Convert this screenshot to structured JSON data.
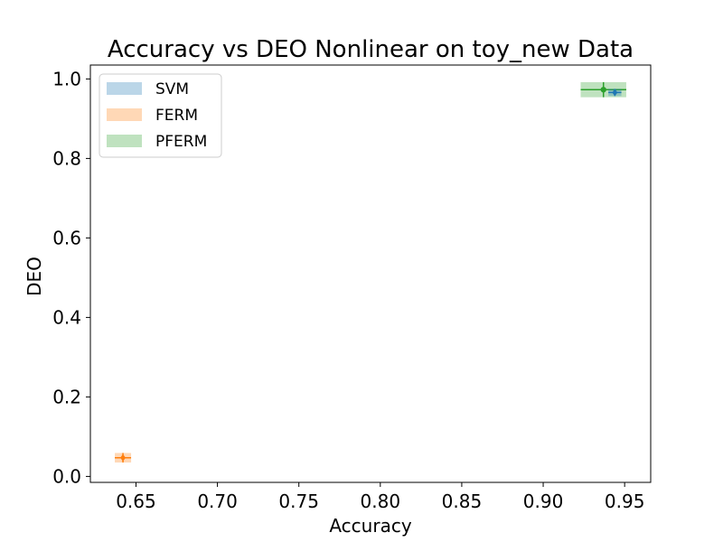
{
  "chart_data": {
    "type": "scatter",
    "title": "Accuracy vs DEO Nonlinear on toy_new Data",
    "xlabel": "Accuracy",
    "ylabel": "DEO",
    "xlim": [
      0.622,
      0.966
    ],
    "ylim": [
      -0.015,
      1.035
    ],
    "x_ticks": [
      "0.65",
      "0.70",
      "0.75",
      "0.80",
      "0.85",
      "0.90",
      "0.95"
    ],
    "x_tick_values": [
      0.65,
      0.7,
      0.75,
      0.8,
      0.85,
      0.9,
      0.95
    ],
    "y_ticks": [
      "0.0",
      "0.2",
      "0.4",
      "0.6",
      "0.8",
      "1.0"
    ],
    "y_tick_values": [
      0.0,
      0.2,
      0.4,
      0.6,
      0.8,
      1.0
    ],
    "grid": false,
    "legend_position": "top-left",
    "series": [
      {
        "name": "SVM",
        "color": "#1f77b4",
        "x": 0.944,
        "y": 0.966,
        "x_err": 0.004,
        "y_err": 0.009,
        "marker": "diamond"
      },
      {
        "name": "FERM",
        "color": "#ff7f0e",
        "x": 0.642,
        "y": 0.047,
        "x_err": 0.005,
        "y_err": 0.012,
        "marker": "diamond"
      },
      {
        "name": "PFERM",
        "color": "#2ca02c",
        "x": 0.937,
        "y": 0.973,
        "x_err": 0.014,
        "y_err": 0.019,
        "marker": "circle"
      }
    ]
  }
}
